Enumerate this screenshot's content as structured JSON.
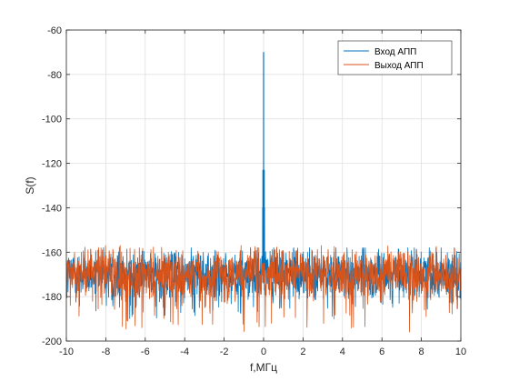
{
  "chart_data": {
    "type": "line",
    "title": "",
    "xlabel": "f,МГц",
    "ylabel": "S(f)",
    "xlim": [
      -10,
      10
    ],
    "ylim": [
      -200,
      -60
    ],
    "xticks": [
      -10,
      -8,
      -6,
      -4,
      -2,
      0,
      2,
      4,
      6,
      8,
      10
    ],
    "yticks": [
      -200,
      -180,
      -160,
      -140,
      -120,
      -100,
      -80,
      -60
    ],
    "xtick_labels": [
      "-10",
      "-8",
      "-6",
      "-4",
      "-2",
      "0",
      "2",
      "4",
      "6",
      "8",
      "10"
    ],
    "ytick_labels": [
      "-200",
      "-180",
      "-160",
      "-140",
      "-120",
      "-100",
      "-80",
      "-60"
    ],
    "grid": true,
    "legend_position": "top-right",
    "series": [
      {
        "name": "Вход АПП",
        "color": "#0072BD",
        "noise_floor_mean": -170,
        "noise_floor_range": [
          -190,
          -158
        ],
        "peaks": [
          {
            "x": 0.0,
            "y": -70
          },
          {
            "x": -0.02,
            "y": -123
          },
          {
            "x": 0.02,
            "y": -123
          },
          {
            "x": -0.05,
            "y": -140
          },
          {
            "x": 0.05,
            "y": -140
          }
        ]
      },
      {
        "name": "Выход АПП",
        "color": "#D95319",
        "noise_floor_mean": -170,
        "noise_floor_range": [
          -196,
          -157
        ],
        "peaks": []
      }
    ]
  }
}
